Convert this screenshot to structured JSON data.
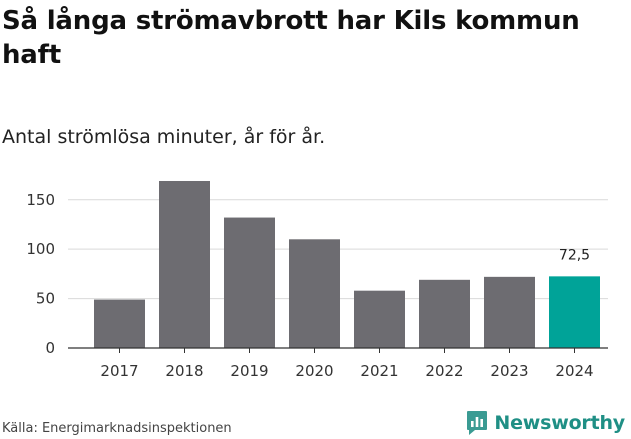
{
  "header": {
    "title_line1": "Så långa strömavbrott har Kils kommun",
    "title_line2": "haft",
    "subtitle": "Antal strömlösa minuter, år för år."
  },
  "footer": {
    "source": "Källa: Energimarknadsinspektionen",
    "brand": "Newsworthy"
  },
  "colors": {
    "bar": "#6d6c71",
    "highlight": "#00a398",
    "grid": "#d9d9d9",
    "axis": "#333333"
  },
  "chart_data": {
    "type": "bar",
    "title": "Så långa strömavbrott har Kils kommun haft",
    "subtitle": "Antal strömlösa minuter, år för år.",
    "xlabel": "",
    "ylabel": "",
    "categories": [
      "2017",
      "2018",
      "2019",
      "2020",
      "2021",
      "2022",
      "2023",
      "2024"
    ],
    "values": [
      49,
      169,
      132,
      110,
      58,
      69,
      72,
      72.5
    ],
    "highlight_index": 7,
    "data_labels": [
      {
        "index": 7,
        "text": "72,5"
      }
    ],
    "ylim": [
      0,
      170
    ],
    "yticks": [
      0,
      50,
      100,
      150
    ],
    "grid": "horizontal",
    "legend": "none"
  }
}
